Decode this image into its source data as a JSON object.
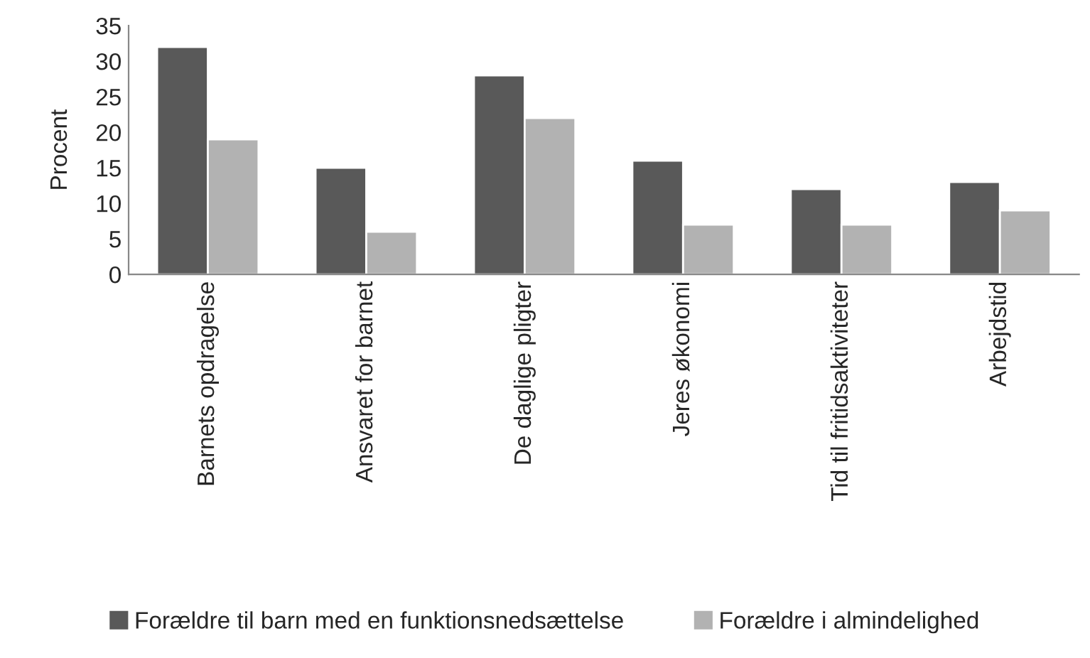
{
  "chart_data": {
    "type": "bar",
    "ylabel": "Procent",
    "categories": [
      "Barnets opdragelse",
      "Ansvaret for barnet",
      "De daglige pligter",
      "Jeres økonomi",
      "Tid til fritidsaktiviteter",
      "Arbejdstid"
    ],
    "series": [
      {
        "name": "Forældre til barn med en funktionsnedsættelse",
        "color": "#595959",
        "values": [
          32,
          15,
          28,
          16,
          12,
          13
        ]
      },
      {
        "name": "Forældre i almindelighed",
        "color": "#b2b2b2",
        "values": [
          19,
          6,
          22,
          7,
          7,
          9
        ]
      }
    ],
    "ylim": [
      0,
      35
    ],
    "yticks": [
      0,
      5,
      10,
      15,
      20,
      25,
      30,
      35
    ],
    "grid": false,
    "legend": "bottom"
  }
}
